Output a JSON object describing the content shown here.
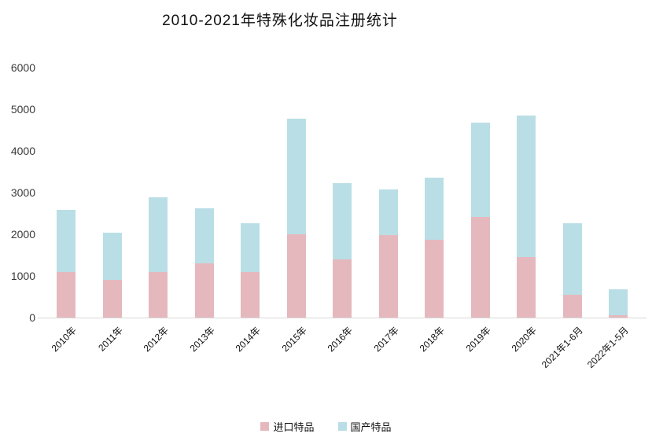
{
  "chart_data": {
    "type": "bar",
    "stacked": true,
    "title": "2010-2021年特殊化妆品注册统计",
    "categories": [
      "2010年",
      "2011年",
      "2012年",
      "2013年",
      "2014年",
      "2015年",
      "2016年",
      "2017年",
      "2018年",
      "2019年",
      "2020年",
      "2021年1-6月",
      "2022年1-5月"
    ],
    "series": [
      {
        "name": "进口特品",
        "color": "#e5b8bd",
        "values": [
          1100,
          900,
          1100,
          1300,
          1100,
          2000,
          1400,
          1980,
          1870,
          2420,
          1460,
          550,
          50
        ]
      },
      {
        "name": "国产特品",
        "color": "#badee5",
        "values": [
          1490,
          1140,
          1780,
          1330,
          1160,
          2780,
          1830,
          1090,
          1480,
          2260,
          3390,
          1710,
          620
        ]
      }
    ],
    "xlabel": "",
    "ylabel": "",
    "ylim": [
      0,
      6000
    ],
    "y_ticks": [
      0,
      1000,
      2000,
      3000,
      4000,
      5000,
      6000
    ],
    "grid": false,
    "legend_position": "bottom",
    "axis_line_color": "#d9d9d9",
    "text_color": "#3a3a3a"
  }
}
